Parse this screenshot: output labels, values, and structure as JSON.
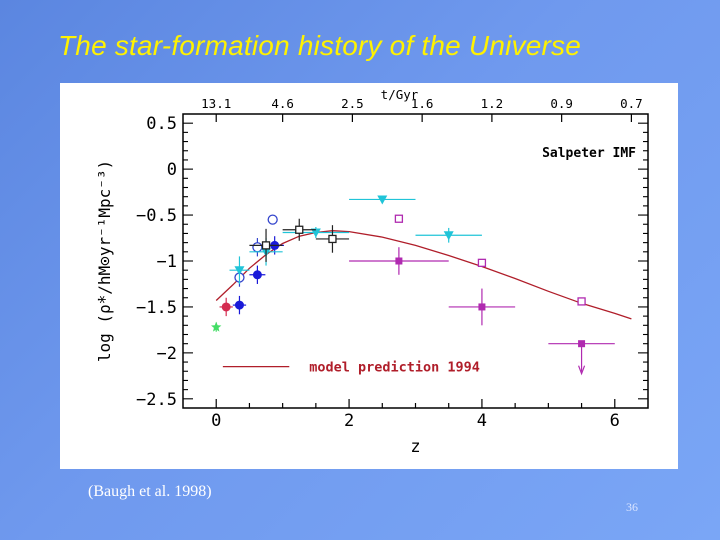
{
  "slide": {
    "title": "The star-formation history of the Universe",
    "citation": "(Baugh et al. 1998)",
    "page_number": "36"
  },
  "chart_data": {
    "type": "scatter",
    "xlabel": "z",
    "ylabel": "log (ρ̇*/hM⊙yr⁻¹Mpc⁻³)",
    "xlim": [
      -0.5,
      6.5
    ],
    "ylim": [
      -2.6,
      0.6
    ],
    "x_ticks": [
      0,
      2,
      4,
      6
    ],
    "y_ticks": [
      0.5,
      0,
      -0.5,
      -1,
      -1.5,
      -2,
      -2.5
    ],
    "y_tick_labels": [
      "0.5",
      "0",
      "−0.5",
      "−1",
      "−1.5",
      "−2",
      "−2.5"
    ],
    "top_axis": {
      "label": "t/Gyr",
      "ticks": [
        {
          "z": 0.0,
          "label": "13.1"
        },
        {
          "z": 1.0,
          "label": "4.6"
        },
        {
          "z": 2.05,
          "label": "2.5"
        },
        {
          "z": 3.1,
          "label": "1.6"
        },
        {
          "z": 4.15,
          "label": "1.2"
        },
        {
          "z": 5.2,
          "label": "0.9"
        },
        {
          "z": 6.25,
          "label": "0.7"
        }
      ]
    },
    "annotation": "Salpeter IMF",
    "legend": {
      "label": "model prediction 1994",
      "color": "#b01e2a",
      "placement": "bottom-left"
    },
    "model_curve": {
      "name": "model prediction 1994",
      "color": "#b01e2a",
      "x": [
        0,
        0.25,
        0.5,
        0.75,
        1.0,
        1.25,
        1.5,
        1.75,
        2.0,
        2.5,
        3.0,
        3.5,
        4.0,
        4.5,
        5.0,
        5.5,
        6.0,
        6.25
      ],
      "y": [
        -1.43,
        -1.26,
        -1.08,
        -0.93,
        -0.81,
        -0.73,
        -0.69,
        -0.67,
        -0.68,
        -0.74,
        -0.83,
        -0.94,
        -1.06,
        -1.19,
        -1.33,
        -1.46,
        -1.57,
        -1.63
      ]
    },
    "series": [
      {
        "color": "#44dd66",
        "marker": "star",
        "points": [
          {
            "x": 0.0,
            "y": -1.72,
            "xerr": 0,
            "yerr": 0.05
          }
        ]
      },
      {
        "color": "#d42b4f",
        "marker": "circle",
        "points": [
          {
            "x": 0.15,
            "y": -1.5,
            "xerr": 0.1,
            "yerr": 0.1
          }
        ]
      },
      {
        "color": "#1a1ad8",
        "marker": "circle",
        "points": [
          {
            "x": 0.35,
            "y": -1.48,
            "xerr": 0.1,
            "yerr": 0.1
          },
          {
            "x": 0.62,
            "y": -1.15,
            "xerr": 0.12,
            "yerr": 0.1
          },
          {
            "x": 0.88,
            "y": -0.83,
            "xerr": 0.14,
            "yerr": 0.1
          }
        ]
      },
      {
        "color": "#3344cc",
        "marker": "circle-open",
        "points": [
          {
            "x": 0.35,
            "y": -1.18,
            "xerr": 0,
            "yerr": 0.1
          },
          {
            "x": 0.62,
            "y": -0.85,
            "xerr": 0,
            "yerr": 0.1
          },
          {
            "x": 0.85,
            "y": -0.55,
            "xerr": 0,
            "yerr": 0
          }
        ]
      },
      {
        "color": "#20c4d8",
        "marker": "triangle-down",
        "points": [
          {
            "x": 0.35,
            "y": -1.1,
            "xerr": 0.15,
            "yerr": 0.15
          },
          {
            "x": 0.75,
            "y": -0.9,
            "xerr": 0.25,
            "yerr": 0.15
          },
          {
            "x": 1.5,
            "y": -0.69,
            "xerr": 0.5,
            "yerr": 0.06
          },
          {
            "x": 2.5,
            "y": -0.33,
            "xerr": 0.5,
            "yerr": 0.04
          },
          {
            "x": 3.5,
            "y": -0.72,
            "xerr": 0.5,
            "yerr": 0.08
          }
        ]
      },
      {
        "color": "#222222",
        "marker": "square-open",
        "points": [
          {
            "x": 0.75,
            "y": -0.83,
            "xerr": 0.25,
            "yerr": 0.18
          },
          {
            "x": 1.25,
            "y": -0.66,
            "xerr": 0.25,
            "yerr": 0.12
          },
          {
            "x": 1.75,
            "y": -0.76,
            "xerr": 0.25,
            "yerr": 0.15
          }
        ]
      },
      {
        "color": "#b02ab0",
        "marker": "square-open",
        "points": [
          {
            "x": 2.75,
            "y": -0.54,
            "xerr": 0,
            "yerr": 0
          },
          {
            "x": 4.0,
            "y": -1.02,
            "xerr": 0,
            "yerr": 0
          },
          {
            "x": 5.5,
            "y": -1.44,
            "xerr": 0,
            "yerr": 0
          }
        ]
      },
      {
        "color": "#b02ab0",
        "marker": "square",
        "points": [
          {
            "x": 2.75,
            "y": -1.0,
            "xerr": 0.75,
            "yerr": 0.15
          },
          {
            "x": 4.0,
            "y": -1.5,
            "xerr": 0.5,
            "yerr": 0.2
          },
          {
            "x": 5.5,
            "y": -1.9,
            "xerr": 0.5,
            "yerr": 0.0,
            "upper_limit": true
          }
        ]
      }
    ]
  }
}
